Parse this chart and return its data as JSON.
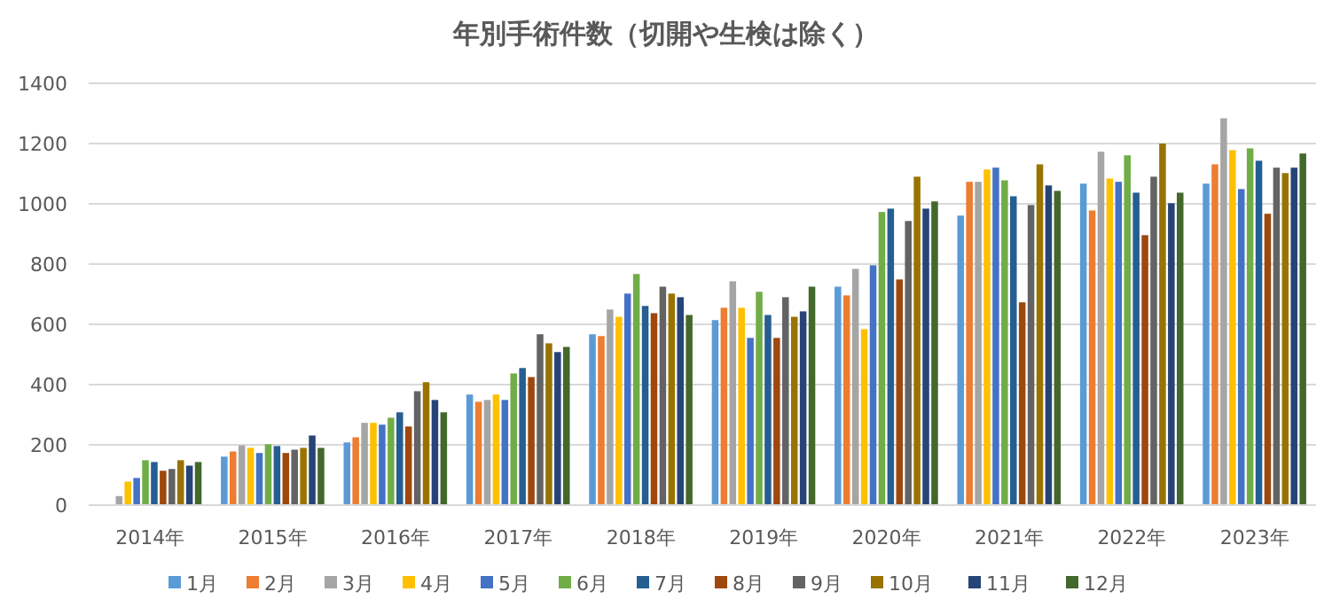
{
  "chart_data": {
    "type": "bar",
    "title": "年別手術件数（切開や生検は除く）",
    "categories": [
      "2014年",
      "2015年",
      "2016年",
      "2017年",
      "2018年",
      "2019年",
      "2020年",
      "2021年",
      "2022年",
      "2023年"
    ],
    "ylim": [
      0,
      1400
    ],
    "yticks": [
      0,
      200,
      400,
      600,
      800,
      1000,
      1200,
      1400
    ],
    "grid": "y",
    "legend": "bottom",
    "series": [
      {
        "name": "1月",
        "color": "#5b9bd5",
        "values": [
          null,
          161,
          208,
          367,
          567,
          614,
          725,
          961,
          1067,
          1067
        ]
      },
      {
        "name": "2月",
        "color": "#ed7d31",
        "values": [
          null,
          178,
          225,
          343,
          561,
          655,
          696,
          1073,
          978,
          1131
        ]
      },
      {
        "name": "3月",
        "color": "#a5a5a5",
        "values": [
          30,
          198,
          273,
          349,
          649,
          743,
          784,
          1073,
          1173,
          1284
        ]
      },
      {
        "name": "4月",
        "color": "#ffc000",
        "values": [
          78,
          190,
          273,
          367,
          625,
          655,
          584,
          1114,
          1084,
          1178
        ]
      },
      {
        "name": "5月",
        "color": "#4472c4",
        "values": [
          90,
          173,
          267,
          349,
          702,
          555,
          796,
          1120,
          1073,
          1049
        ]
      },
      {
        "name": "6月",
        "color": "#70ad47",
        "values": [
          149,
          202,
          290,
          437,
          767,
          708,
          973,
          1078,
          1161,
          1184
        ]
      },
      {
        "name": "7月",
        "color": "#255e91",
        "values": [
          143,
          196,
          308,
          455,
          661,
          631,
          984,
          1025,
          1037,
          1143
        ]
      },
      {
        "name": "8月",
        "color": "#9e480e",
        "values": [
          114,
          173,
          261,
          425,
          637,
          555,
          749,
          673,
          896,
          967
        ]
      },
      {
        "name": "9月",
        "color": "#636363",
        "values": [
          120,
          184,
          378,
          567,
          725,
          690,
          943,
          996,
          1090,
          1120
        ]
      },
      {
        "name": "10月",
        "color": "#997300",
        "values": [
          149,
          190,
          408,
          537,
          702,
          625,
          1090,
          1131,
          1200,
          1102
        ]
      },
      {
        "name": "11月",
        "color": "#264478",
        "values": [
          131,
          231,
          349,
          508,
          690,
          643,
          984,
          1061,
          1002,
          1120
        ]
      },
      {
        "name": "12月",
        "color": "#43682b",
        "values": [
          143,
          190,
          308,
          525,
          631,
          725,
          1008,
          1043,
          1037,
          1167
        ]
      }
    ]
  }
}
